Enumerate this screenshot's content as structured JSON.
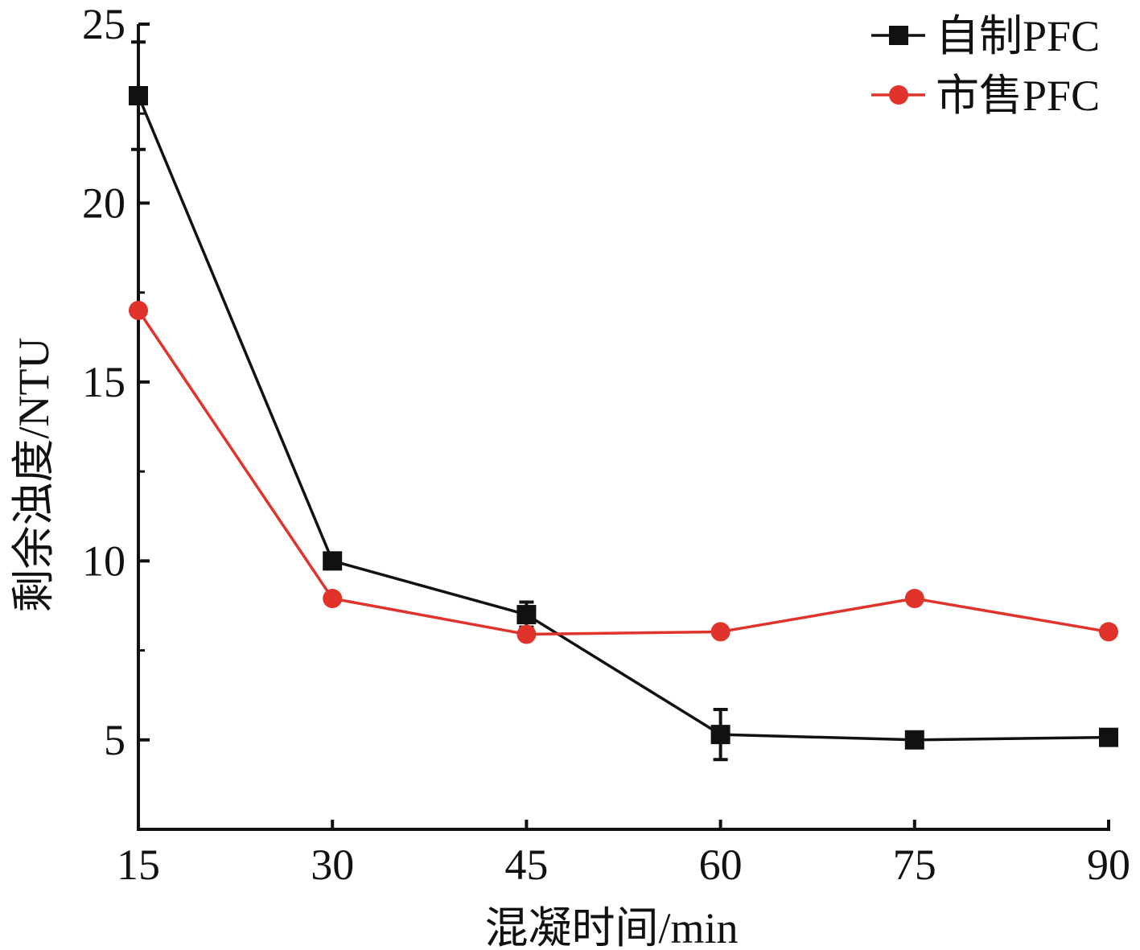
{
  "chart_data": {
    "type": "line",
    "x": [
      15,
      30,
      45,
      60,
      75,
      90
    ],
    "xlabel": "混凝时间/min",
    "ylabel": "剩余浊度/NTU",
    "xlim": [
      15,
      90
    ],
    "ylim": [
      2.5,
      25
    ],
    "xticks": [
      "15",
      "30",
      "45",
      "60",
      "75",
      "90"
    ],
    "yticks": [
      "5",
      "10",
      "15",
      "20",
      "25"
    ],
    "grid": false,
    "legend_position": "top-right",
    "series": [
      {
        "name": "自制PFC",
        "marker": "square",
        "color": "#111111",
        "values": [
          23.0,
          10.0,
          8.5,
          5.15,
          5.0,
          5.07
        ],
        "errors": [
          1.5,
          0.0,
          0.35,
          0.7,
          0.0,
          0.0
        ]
      },
      {
        "name": "市售PFC",
        "marker": "circle",
        "color": "#e0332b",
        "values": [
          17.0,
          8.95,
          7.95,
          8.02,
          8.95,
          8.02
        ],
        "errors": [
          0,
          0,
          0,
          0,
          0,
          0
        ]
      }
    ]
  }
}
